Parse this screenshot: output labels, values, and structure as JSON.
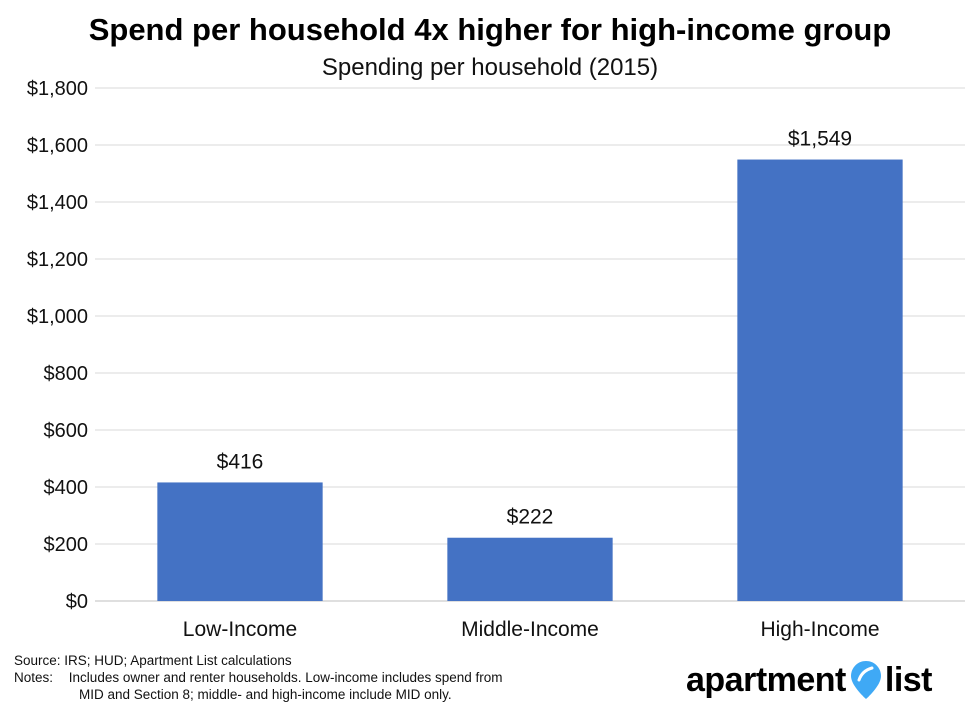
{
  "chart_data": {
    "type": "bar",
    "title": "Spend per household 4x higher for high-income group",
    "subtitle": "Spending per household (2015)",
    "categories": [
      "Low-Income",
      "Middle-Income",
      "High-Income"
    ],
    "values": [
      416,
      222,
      1549
    ],
    "data_labels": [
      "$416",
      "$222",
      "$1,549"
    ],
    "ylim": [
      0,
      1800
    ],
    "yticks": [
      0,
      200,
      400,
      600,
      800,
      1000,
      1200,
      1400,
      1600,
      1800
    ],
    "ytick_labels": [
      "$0",
      "$200",
      "$400",
      "$600",
      "$800",
      "$1,000",
      "$1,200",
      "$1,400",
      "$1,600",
      "$1,800"
    ],
    "grid": true,
    "bar_color": "#4472C4"
  },
  "footer": {
    "source": "Source: IRS; HUD; Apartment List calculations",
    "notes_label": "Notes:",
    "notes_line1": "Includes owner and renter households. Low-income includes spend from",
    "notes_line2": "MID and Section 8; middle- and high-income include MID only."
  },
  "logo": {
    "word1": "apartment",
    "word2": "list",
    "pin_color": "#3FA9F5"
  }
}
